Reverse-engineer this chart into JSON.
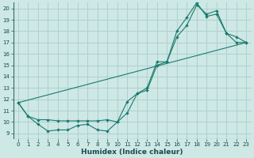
{
  "bg_color": "#cde8e5",
  "line_color": "#1a7a6e",
  "grid_color": "#b0d0ce",
  "xlabel": "Humidex (Indice chaleur)",
  "xlim": [
    -0.5,
    23.5
  ],
  "ylim": [
    8.5,
    20.5
  ],
  "xticks": [
    0,
    1,
    2,
    3,
    4,
    5,
    6,
    7,
    8,
    9,
    10,
    11,
    12,
    13,
    14,
    15,
    16,
    17,
    18,
    19,
    20,
    21,
    22,
    23
  ],
  "yticks": [
    9,
    10,
    11,
    12,
    13,
    14,
    15,
    16,
    17,
    18,
    19,
    20
  ],
  "line1_x": [
    0,
    1,
    2,
    3,
    4,
    5,
    6,
    7,
    8,
    9,
    10,
    11,
    12,
    13,
    14,
    15,
    16,
    17,
    18,
    19,
    20,
    21,
    22,
    23
  ],
  "line1_y": [
    11.7,
    10.5,
    9.8,
    9.2,
    9.3,
    9.3,
    9.7,
    9.8,
    9.3,
    9.2,
    10.0,
    11.8,
    12.5,
    13.0,
    15.3,
    15.3,
    17.5,
    18.5,
    20.3,
    19.5,
    19.8,
    17.8,
    17.5,
    17.0
  ],
  "line2_x": [
    0,
    1,
    2,
    3,
    4,
    5,
    6,
    7,
    8,
    9,
    10,
    11,
    12,
    13,
    14,
    15,
    16,
    17,
    18,
    19,
    20,
    21,
    22,
    23
  ],
  "line2_y": [
    11.7,
    10.5,
    10.2,
    10.2,
    10.1,
    10.1,
    10.1,
    10.1,
    10.1,
    10.2,
    10.0,
    10.8,
    12.5,
    12.8,
    15.0,
    15.3,
    18.0,
    19.2,
    20.5,
    19.3,
    19.5,
    17.8,
    17.0,
    17.0
  ],
  "line3_x": [
    0,
    23
  ],
  "line3_y": [
    11.7,
    17.0
  ]
}
